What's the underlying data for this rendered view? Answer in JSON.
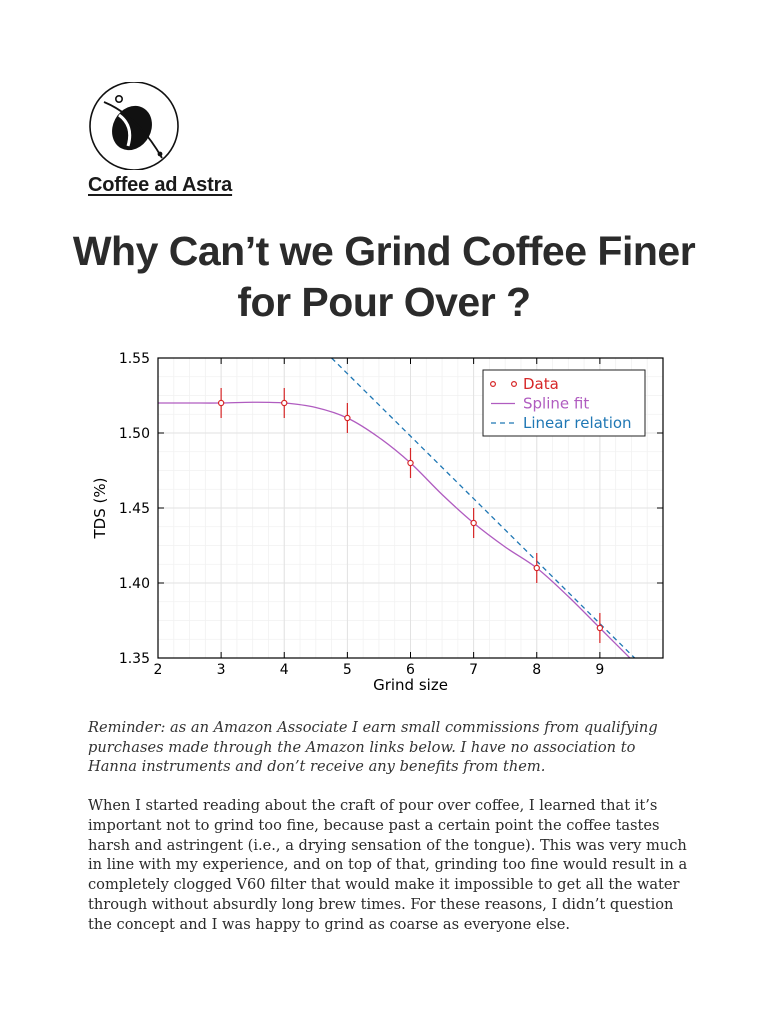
{
  "blog": {
    "name": "Coffee ad Astra",
    "logo_icon": "coffee-bean-orbit-icon"
  },
  "post": {
    "title": "Why Can’t we Grind Coffee Finer for Pour Over ?"
  },
  "chart_data": {
    "type": "line",
    "title": "",
    "xlabel": "Grind size",
    "ylabel": "TDS (%)",
    "xlim": [
      2,
      10
    ],
    "ylim": [
      1.35,
      1.55
    ],
    "xticks": [
      2,
      3,
      4,
      5,
      6,
      7,
      8,
      9
    ],
    "yticks": [
      1.35,
      1.4,
      1.45,
      1.5,
      1.55
    ],
    "grid": true,
    "legend_position": "top-right",
    "series": [
      {
        "name": "Data",
        "kind": "scatter-errorbar",
        "color": "#d62728",
        "x": [
          3,
          4,
          5,
          6,
          7,
          8,
          9
        ],
        "y": [
          1.52,
          1.52,
          1.51,
          1.48,
          1.44,
          1.41,
          1.37
        ],
        "yerr": [
          0.01,
          0.01,
          0.01,
          0.01,
          0.01,
          0.01,
          0.01
        ]
      },
      {
        "name": "Spline fit",
        "kind": "line",
        "color": "#b05cc0",
        "x": [
          2,
          2.5,
          3,
          3.5,
          4,
          4.5,
          5,
          5.5,
          6,
          6.5,
          7,
          7.5,
          8,
          8.5,
          9,
          9.5
        ],
        "y": [
          1.52,
          1.52,
          1.52,
          1.5205,
          1.52,
          1.517,
          1.51,
          1.497,
          1.48,
          1.459,
          1.44,
          1.424,
          1.41,
          1.391,
          1.37,
          1.349
        ]
      },
      {
        "name": "Linear relation",
        "kind": "dashed-line",
        "color": "#1f77b4",
        "x": [
          4.75,
          9.55
        ],
        "y": [
          1.55,
          1.35
        ]
      }
    ]
  },
  "disclaimer": "Reminder: as an Amazon Associate I earn small commissions from qualifying purchases made through the Amazon links below. I have no association to Hanna instruments and don’t receive any benefits from them.",
  "paragraphs": [
    "When I started reading about the craft of pour over coffee, I learned that it’s important not to grind too fine, because past a certain point the coffee tastes harsh and astringent (i.e., a drying sensation of the tongue). This was very much in line with my experience, and on top of that, grinding too fine would result in a completely clogged V60 filter that would make it impossible to get all the water through without absurdly long brew times. For these reasons, I didn’t question the concept and I was happy to grind as coarse as everyone else."
  ]
}
